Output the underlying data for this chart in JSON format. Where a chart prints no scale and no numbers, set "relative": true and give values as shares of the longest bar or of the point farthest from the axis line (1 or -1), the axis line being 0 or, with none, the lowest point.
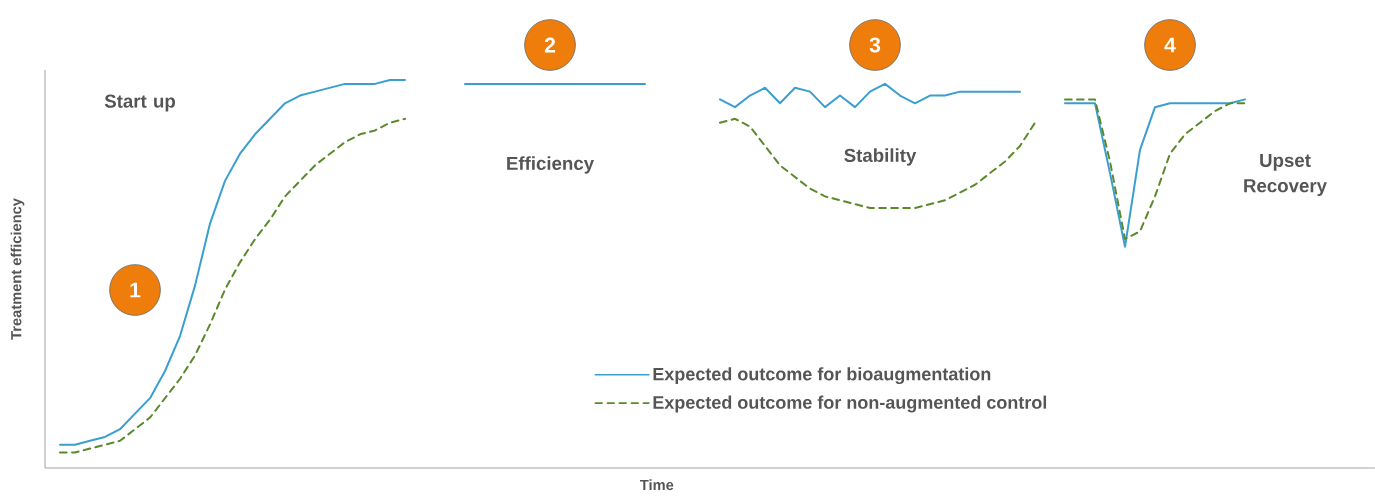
{
  "chart_data": {
    "type": "line",
    "relative": true,
    "xlabel": "Time",
    "ylabel": "Treatment efficiency",
    "categories": [
      null,
      null,
      null,
      null,
      null,
      null,
      null,
      null,
      null,
      null,
      null,
      null,
      null,
      null,
      null,
      null,
      null,
      null,
      null,
      null,
      null,
      null,
      null,
      null,
      null,
      null,
      null,
      null,
      null,
      null,
      null,
      null,
      null,
      null,
      null,
      null,
      null,
      null,
      null,
      null,
      null,
      null,
      null,
      null,
      null,
      null,
      null,
      null,
      null,
      null,
      null,
      null,
      null,
      null,
      null,
      null,
      null,
      null,
      null,
      null,
      null,
      null,
      null,
      null,
      null,
      null,
      null,
      null,
      null,
      null,
      null,
      null,
      null,
      null,
      null,
      null,
      null,
      null,
      null,
      null
    ],
    "series": [
      {
        "name": "Expected outcome for bioaugmentation",
        "color": "#3a9fd0",
        "line_style": "solid",
        "values": [
          0.06,
          0.06,
          0.07,
          0.08,
          0.1,
          0.14,
          0.18,
          0.25,
          0.34,
          0.47,
          0.63,
          0.74,
          0.81,
          0.86,
          0.9,
          0.94,
          0.96,
          0.97,
          0.98,
          0.99,
          0.99,
          0.99,
          1.0,
          1.0,
          null,
          null,
          null,
          null,
          null,
          null,
          null,
          null,
          null,
          null,
          null,
          null,
          null,
          null,
          null,
          null,
          null,
          null,
          null,
          null,
          null,
          null,
          null,
          null,
          null,
          null,
          null,
          null,
          null,
          null,
          null,
          null,
          null,
          null,
          null,
          null,
          null,
          null,
          null,
          null,
          null,
          null,
          null,
          null,
          null,
          null,
          null,
          null,
          null,
          null,
          null,
          null,
          null,
          null,
          null,
          null
        ]
      },
      {
        "name": "Expected outcome for non-augmented control",
        "color": "#5a8a2a",
        "line_style": "dashed",
        "values": [
          0.04,
          0.04,
          0.05,
          0.06,
          0.07,
          0.1,
          0.13,
          0.18,
          0.23,
          0.29,
          0.37,
          0.46,
          0.53,
          0.59,
          0.64,
          0.7,
          0.74,
          0.78,
          0.81,
          0.84,
          0.86,
          0.87,
          0.89,
          0.9,
          null,
          null,
          null,
          null,
          null,
          null,
          null,
          null,
          null,
          null,
          null,
          null,
          null,
          null,
          null,
          null,
          null,
          null,
          null,
          null,
          null,
          null,
          null,
          null,
          null,
          null,
          null,
          null,
          null,
          null,
          null,
          null,
          null,
          null,
          null,
          null,
          null,
          null,
          null,
          null,
          null,
          null,
          null,
          null,
          null,
          null,
          null,
          null,
          null,
          null,
          null,
          null,
          null,
          null,
          null,
          null
        ]
      },
      {
        "color": "#3a9fd0",
        "line_style": "solid",
        "values": [
          null,
          null,
          null,
          null,
          null,
          null,
          null,
          null,
          null,
          null,
          null,
          null,
          null,
          null,
          null,
          null,
          null,
          null,
          null,
          null,
          null,
          null,
          null,
          null,
          null,
          null,
          null,
          0.99,
          0.99,
          0.99,
          0.99,
          0.99,
          0.99,
          0.99,
          0.99,
          0.99,
          0.99,
          0.99,
          0.99,
          0.99,
          null,
          null,
          null,
          null,
          null,
          null,
          null,
          null,
          null,
          null,
          null,
          null,
          null,
          null,
          null,
          null,
          null,
          null,
          null,
          null,
          null,
          null,
          null,
          null,
          null,
          null,
          null,
          null,
          null,
          null,
          null,
          null,
          null,
          null,
          null,
          null,
          null,
          null,
          null,
          null
        ]
      },
      {
        "color": "#3a9fd0",
        "line_style": "solid",
        "values": [
          null,
          null,
          null,
          null,
          null,
          null,
          null,
          null,
          null,
          null,
          null,
          null,
          null,
          null,
          null,
          null,
          null,
          null,
          null,
          null,
          null,
          null,
          null,
          null,
          null,
          null,
          null,
          null,
          null,
          null,
          null,
          null,
          null,
          null,
          null,
          null,
          null,
          null,
          null,
          null,
          null,
          null,
          null,
          null,
          0.95,
          0.93,
          0.96,
          0.98,
          0.94,
          0.98,
          0.97,
          0.93,
          0.96,
          0.93,
          0.97,
          0.99,
          0.96,
          0.94,
          0.96,
          0.96,
          0.97,
          0.97,
          0.97,
          0.97,
          0.97,
          null,
          null,
          null,
          null,
          null,
          null,
          null,
          null,
          null,
          null,
          null,
          null,
          null,
          null,
          null
        ]
      },
      {
        "color": "#5a8a2a",
        "line_style": "dashed",
        "values": [
          null,
          null,
          null,
          null,
          null,
          null,
          null,
          null,
          null,
          null,
          null,
          null,
          null,
          null,
          null,
          null,
          null,
          null,
          null,
          null,
          null,
          null,
          null,
          null,
          null,
          null,
          null,
          null,
          null,
          null,
          null,
          null,
          null,
          null,
          null,
          null,
          null,
          null,
          null,
          null,
          null,
          null,
          null,
          null,
          0.89,
          0.9,
          0.88,
          0.83,
          0.78,
          0.75,
          0.72,
          0.7,
          0.69,
          0.68,
          0.67,
          0.67,
          0.67,
          0.67,
          0.68,
          0.69,
          0.71,
          0.73,
          0.76,
          0.79,
          0.83,
          0.89,
          null,
          null,
          null,
          null,
          null,
          null,
          null,
          null,
          null,
          null,
          null,
          null,
          null,
          null
        ]
      },
      {
        "color": "#3a9fd0",
        "line_style": "solid",
        "values": [
          null,
          null,
          null,
          null,
          null,
          null,
          null,
          null,
          null,
          null,
          null,
          null,
          null,
          null,
          null,
          null,
          null,
          null,
          null,
          null,
          null,
          null,
          null,
          null,
          null,
          null,
          null,
          null,
          null,
          null,
          null,
          null,
          null,
          null,
          null,
          null,
          null,
          null,
          null,
          null,
          null,
          null,
          null,
          null,
          null,
          null,
          null,
          null,
          null,
          null,
          null,
          null,
          null,
          null,
          null,
          null,
          null,
          null,
          null,
          null,
          null,
          null,
          null,
          null,
          null,
          null,
          null,
          0.94,
          0.94,
          0.94,
          0.76,
          0.57,
          0.82,
          0.93,
          0.94,
          0.94,
          0.94,
          0.94,
          0.94,
          0.95
        ]
      },
      {
        "color": "#5a8a2a",
        "line_style": "dashed",
        "values": [
          null,
          null,
          null,
          null,
          null,
          null,
          null,
          null,
          null,
          null,
          null,
          null,
          null,
          null,
          null,
          null,
          null,
          null,
          null,
          null,
          null,
          null,
          null,
          null,
          null,
          null,
          null,
          null,
          null,
          null,
          null,
          null,
          null,
          null,
          null,
          null,
          null,
          null,
          null,
          null,
          null,
          null,
          null,
          null,
          null,
          null,
          null,
          null,
          null,
          null,
          null,
          null,
          null,
          null,
          null,
          null,
          null,
          null,
          null,
          null,
          null,
          null,
          null,
          null,
          null,
          null,
          null,
          0.95,
          0.95,
          0.95,
          0.79,
          0.59,
          0.61,
          0.7,
          0.81,
          0.86,
          0.89,
          0.92,
          0.94,
          0.94
        ]
      }
    ],
    "legend": "bottom right",
    "annotations": [
      "Start up",
      "Efficiency",
      "Stability",
      "Upset Recovery",
      "1",
      "2",
      "3",
      "4"
    ]
  }
}
